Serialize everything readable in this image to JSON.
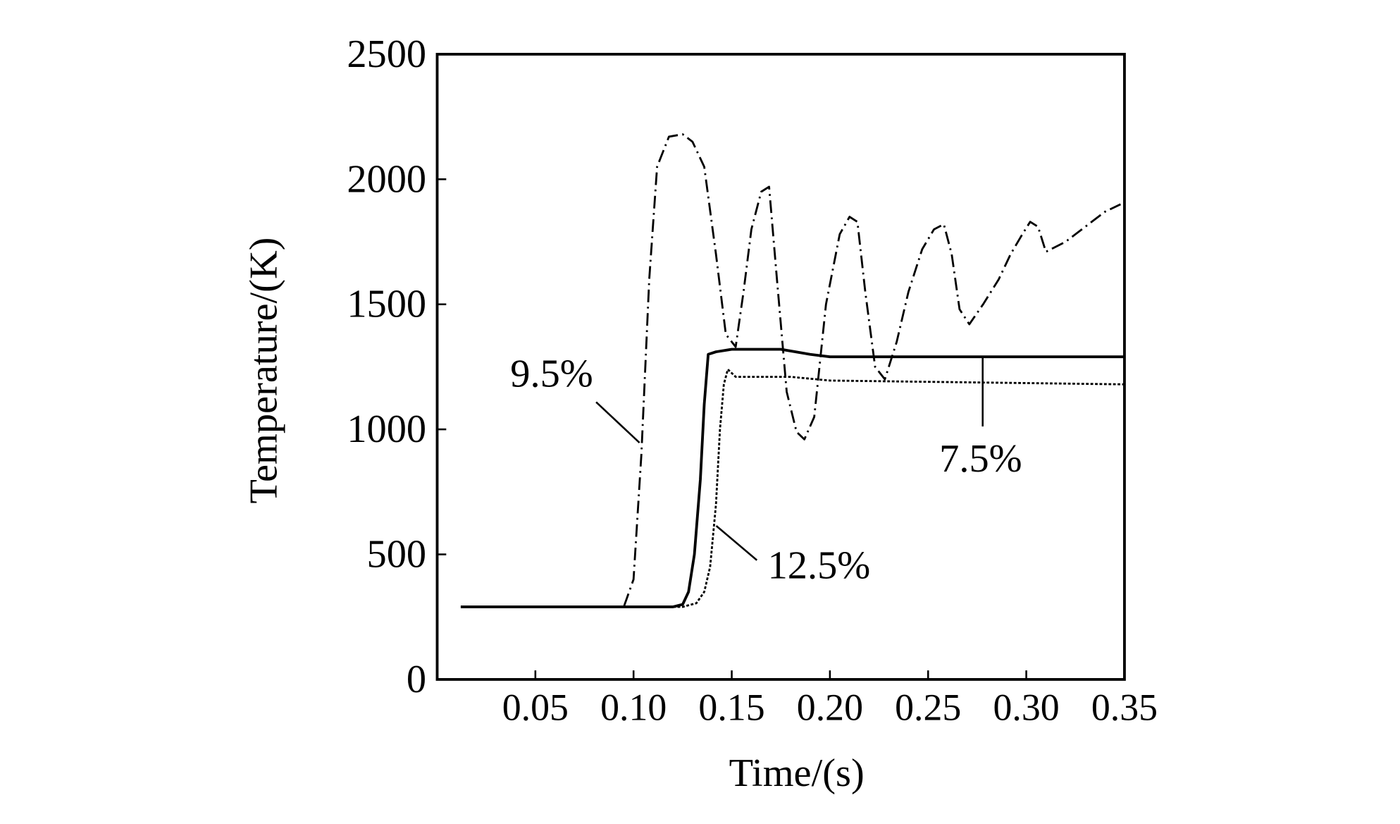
{
  "chart_data": {
    "type": "line",
    "title": "",
    "xlabel": "Time/(s)",
    "ylabel": "Temperature/(K)",
    "xlim": [
      0,
      0.35
    ],
    "ylim": [
      0,
      2500
    ],
    "xticks": [
      0.05,
      0.1,
      0.15,
      0.2,
      0.25,
      0.3,
      0.35
    ],
    "xtick_labels": [
      "0.05",
      "0.10",
      "0.15",
      "0.20",
      "0.25",
      "0.30",
      "0.35"
    ],
    "yticks": [
      0,
      500,
      1000,
      1500,
      2000,
      2500
    ],
    "ytick_labels": [
      "0",
      "500",
      "1000",
      "1500",
      "2000",
      "2500"
    ],
    "grid": false,
    "series": [
      {
        "name": "9.5%",
        "style": "dashdot",
        "x": [
          0.012,
          0.095,
          0.1,
          0.104,
          0.108,
          0.112,
          0.118,
          0.125,
          0.13,
          0.136,
          0.142,
          0.147,
          0.152,
          0.156,
          0.16,
          0.165,
          0.169,
          0.173,
          0.178,
          0.183,
          0.187,
          0.192,
          0.198,
          0.205,
          0.21,
          0.214,
          0.218,
          0.223,
          0.228,
          0.234,
          0.24,
          0.247,
          0.253,
          0.258,
          0.262,
          0.266,
          0.271,
          0.278,
          0.286,
          0.292,
          0.298,
          0.302,
          0.306,
          0.31,
          0.32,
          0.33,
          0.34,
          0.348
        ],
        "y": [
          290,
          290,
          400,
          900,
          1600,
          2050,
          2170,
          2180,
          2150,
          2050,
          1700,
          1380,
          1330,
          1550,
          1800,
          1950,
          1970,
          1600,
          1150,
          990,
          960,
          1050,
          1500,
          1780,
          1850,
          1830,
          1550,
          1250,
          1200,
          1350,
          1550,
          1720,
          1800,
          1820,
          1700,
          1480,
          1420,
          1500,
          1600,
          1700,
          1780,
          1830,
          1810,
          1710,
          1750,
          1810,
          1870,
          1900
        ]
      },
      {
        "name": "7.5%",
        "style": "solid",
        "x": [
          0.012,
          0.12,
          0.125,
          0.128,
          0.131,
          0.134,
          0.136,
          0.138,
          0.142,
          0.15,
          0.175,
          0.19,
          0.2,
          0.25,
          0.3,
          0.35
        ],
        "y": [
          290,
          290,
          300,
          350,
          500,
          800,
          1100,
          1300,
          1310,
          1320,
          1320,
          1300,
          1290,
          1290,
          1290,
          1290
        ]
      },
      {
        "name": "12.5%",
        "style": "dotted",
        "x": [
          0.012,
          0.125,
          0.132,
          0.136,
          0.139,
          0.142,
          0.144,
          0.146,
          0.148,
          0.152,
          0.16,
          0.18,
          0.2,
          0.25,
          0.3,
          0.35
        ],
        "y": [
          290,
          290,
          305,
          350,
          450,
          700,
          1000,
          1180,
          1240,
          1210,
          1210,
          1210,
          1195,
          1190,
          1185,
          1180
        ]
      }
    ],
    "annotations": [
      {
        "text": "9.5%",
        "series": "9.5%"
      },
      {
        "text": "7.5%",
        "series": "7.5%"
      },
      {
        "text": "12.5%",
        "series": "12.5%"
      }
    ]
  }
}
